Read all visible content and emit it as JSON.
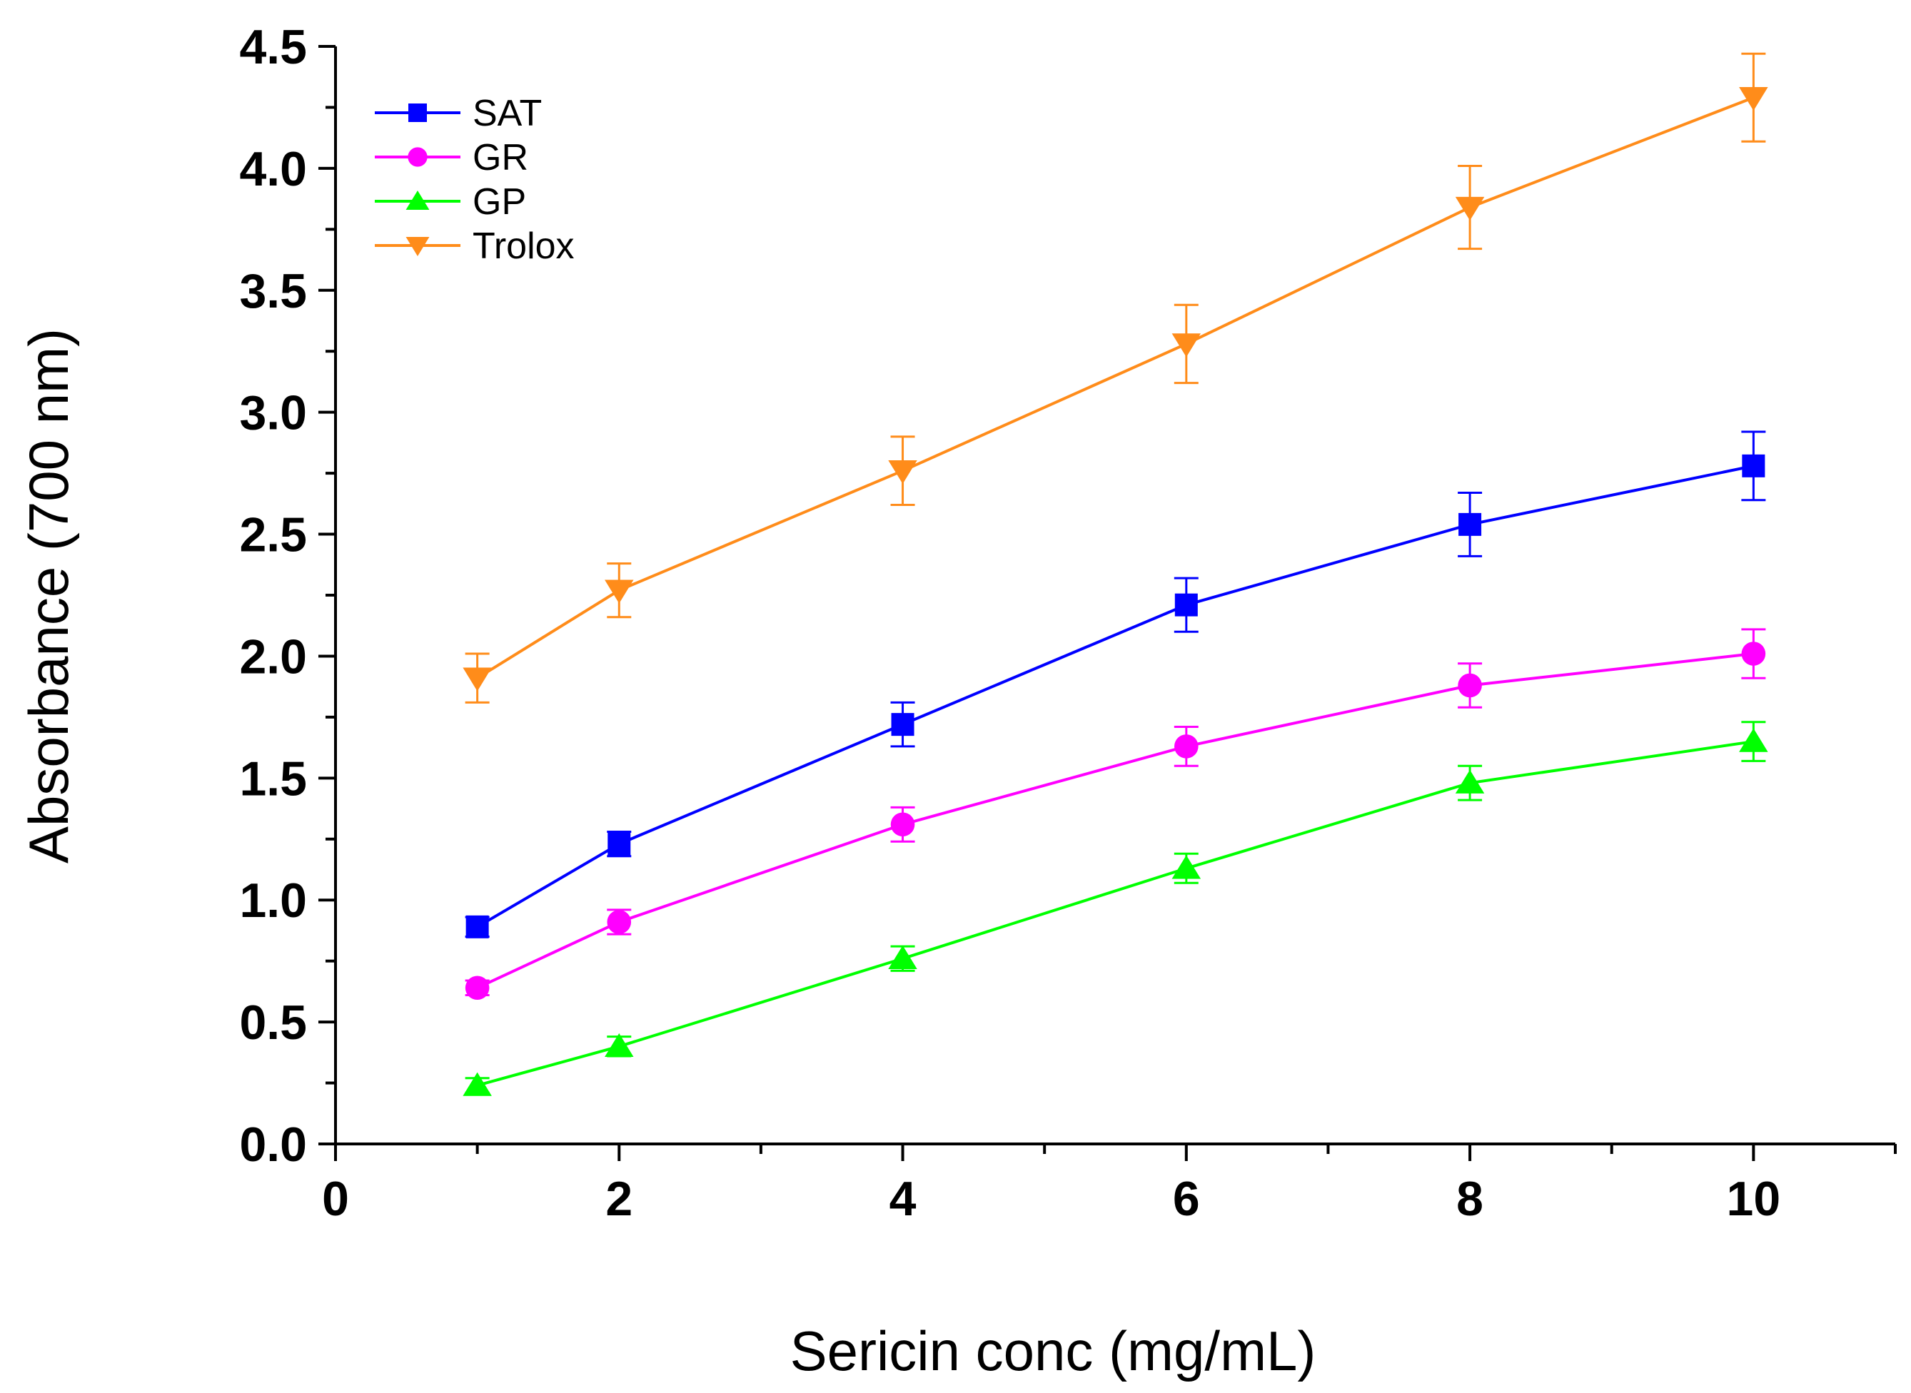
{
  "chart_data": {
    "type": "line",
    "title": "",
    "xlabel": "Sericin conc (mg/mL)",
    "ylabel": "Absorbance (700 nm)",
    "xlim": [
      0,
      11
    ],
    "ylim": [
      0,
      4.5
    ],
    "xticks": [
      "0",
      "2",
      "4",
      "6",
      "8",
      "10"
    ],
    "yticks": [
      "0.0",
      "0.5",
      "1.0",
      "1.5",
      "2.0",
      "2.5",
      "3.0",
      "3.5",
      "4.0",
      "4.5"
    ],
    "grid": false,
    "legend_position": "top-left",
    "x": [
      1,
      2,
      4,
      6,
      8,
      10
    ],
    "series": [
      {
        "name": "SAT",
        "color": "#0000ff",
        "marker": "square",
        "values": [
          0.89,
          1.23,
          1.72,
          2.21,
          2.54,
          2.78
        ],
        "errors": [
          0.04,
          0.05,
          0.09,
          0.11,
          0.13,
          0.14
        ]
      },
      {
        "name": "GR",
        "color": "#ff00ff",
        "marker": "circle",
        "values": [
          0.64,
          0.91,
          1.31,
          1.63,
          1.88,
          2.01
        ],
        "errors": [
          0.03,
          0.05,
          0.07,
          0.08,
          0.09,
          0.1
        ]
      },
      {
        "name": "GP",
        "color": "#00ff00",
        "marker": "triangle-up",
        "values": [
          0.24,
          0.4,
          0.76,
          1.13,
          1.48,
          1.65
        ],
        "errors": [
          0.03,
          0.04,
          0.05,
          0.06,
          0.07,
          0.08
        ]
      },
      {
        "name": "Trolox",
        "color": "#ff8c1a",
        "marker": "triangle-down",
        "values": [
          1.91,
          2.27,
          2.76,
          3.28,
          3.84,
          4.29
        ],
        "errors": [
          0.1,
          0.11,
          0.14,
          0.16,
          0.17,
          0.18
        ]
      }
    ]
  }
}
